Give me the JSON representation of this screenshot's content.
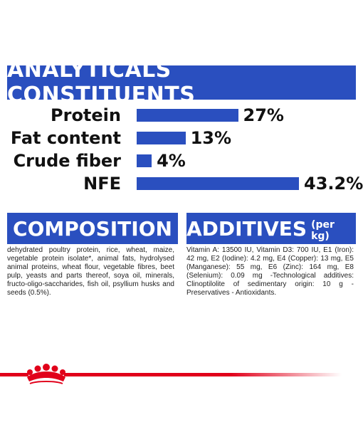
{
  "analyticals": {
    "title": "ANALYTICALS CONSTITUENTS",
    "items": [
      {
        "label": "Protein",
        "value_text": "27%",
        "value": 27
      },
      {
        "label": "Fat content",
        "value_text": "13%",
        "value": 13
      },
      {
        "label": "Crude fiber",
        "value_text": "4%",
        "value": 4
      },
      {
        "label": "NFE",
        "value_text": "43.2%",
        "value": 43.2
      }
    ]
  },
  "composition": {
    "title": "COMPOSITION",
    "text": "dehydrated poultry protein, rice, wheat, maize, vegetable protein isolate*, animal fats, hydrolysed animal proteins, wheat flour, vegetable fibres, beet pulp, yeasts and parts thereof, soya oil, minerals, fructo-oligo-saccharides, fish oil, psyllium husks and seeds (0.5%)."
  },
  "additives": {
    "title": "ADDITIVES",
    "subtitle": "(per kg)",
    "text": "Vitamin A: 13500 IU, Vitamin D3: 700 IU, E1 (Iron): 42 mg, E2 (Iodine): 4.2 mg, E4 (Copper): 13 mg, E5 (Manganese): 55 mg, E6 (Zinc): 164 mg, E8 (Selenium): 0.09 mg -Technological additives: Clinoptilolite of sedimentary origin: 10 g - Preservatives - Antioxidants."
  },
  "colors": {
    "brand_blue": "#2a4fbf",
    "brand_red": "#e1001a"
  },
  "logo": {
    "icon": "crown-icon"
  }
}
